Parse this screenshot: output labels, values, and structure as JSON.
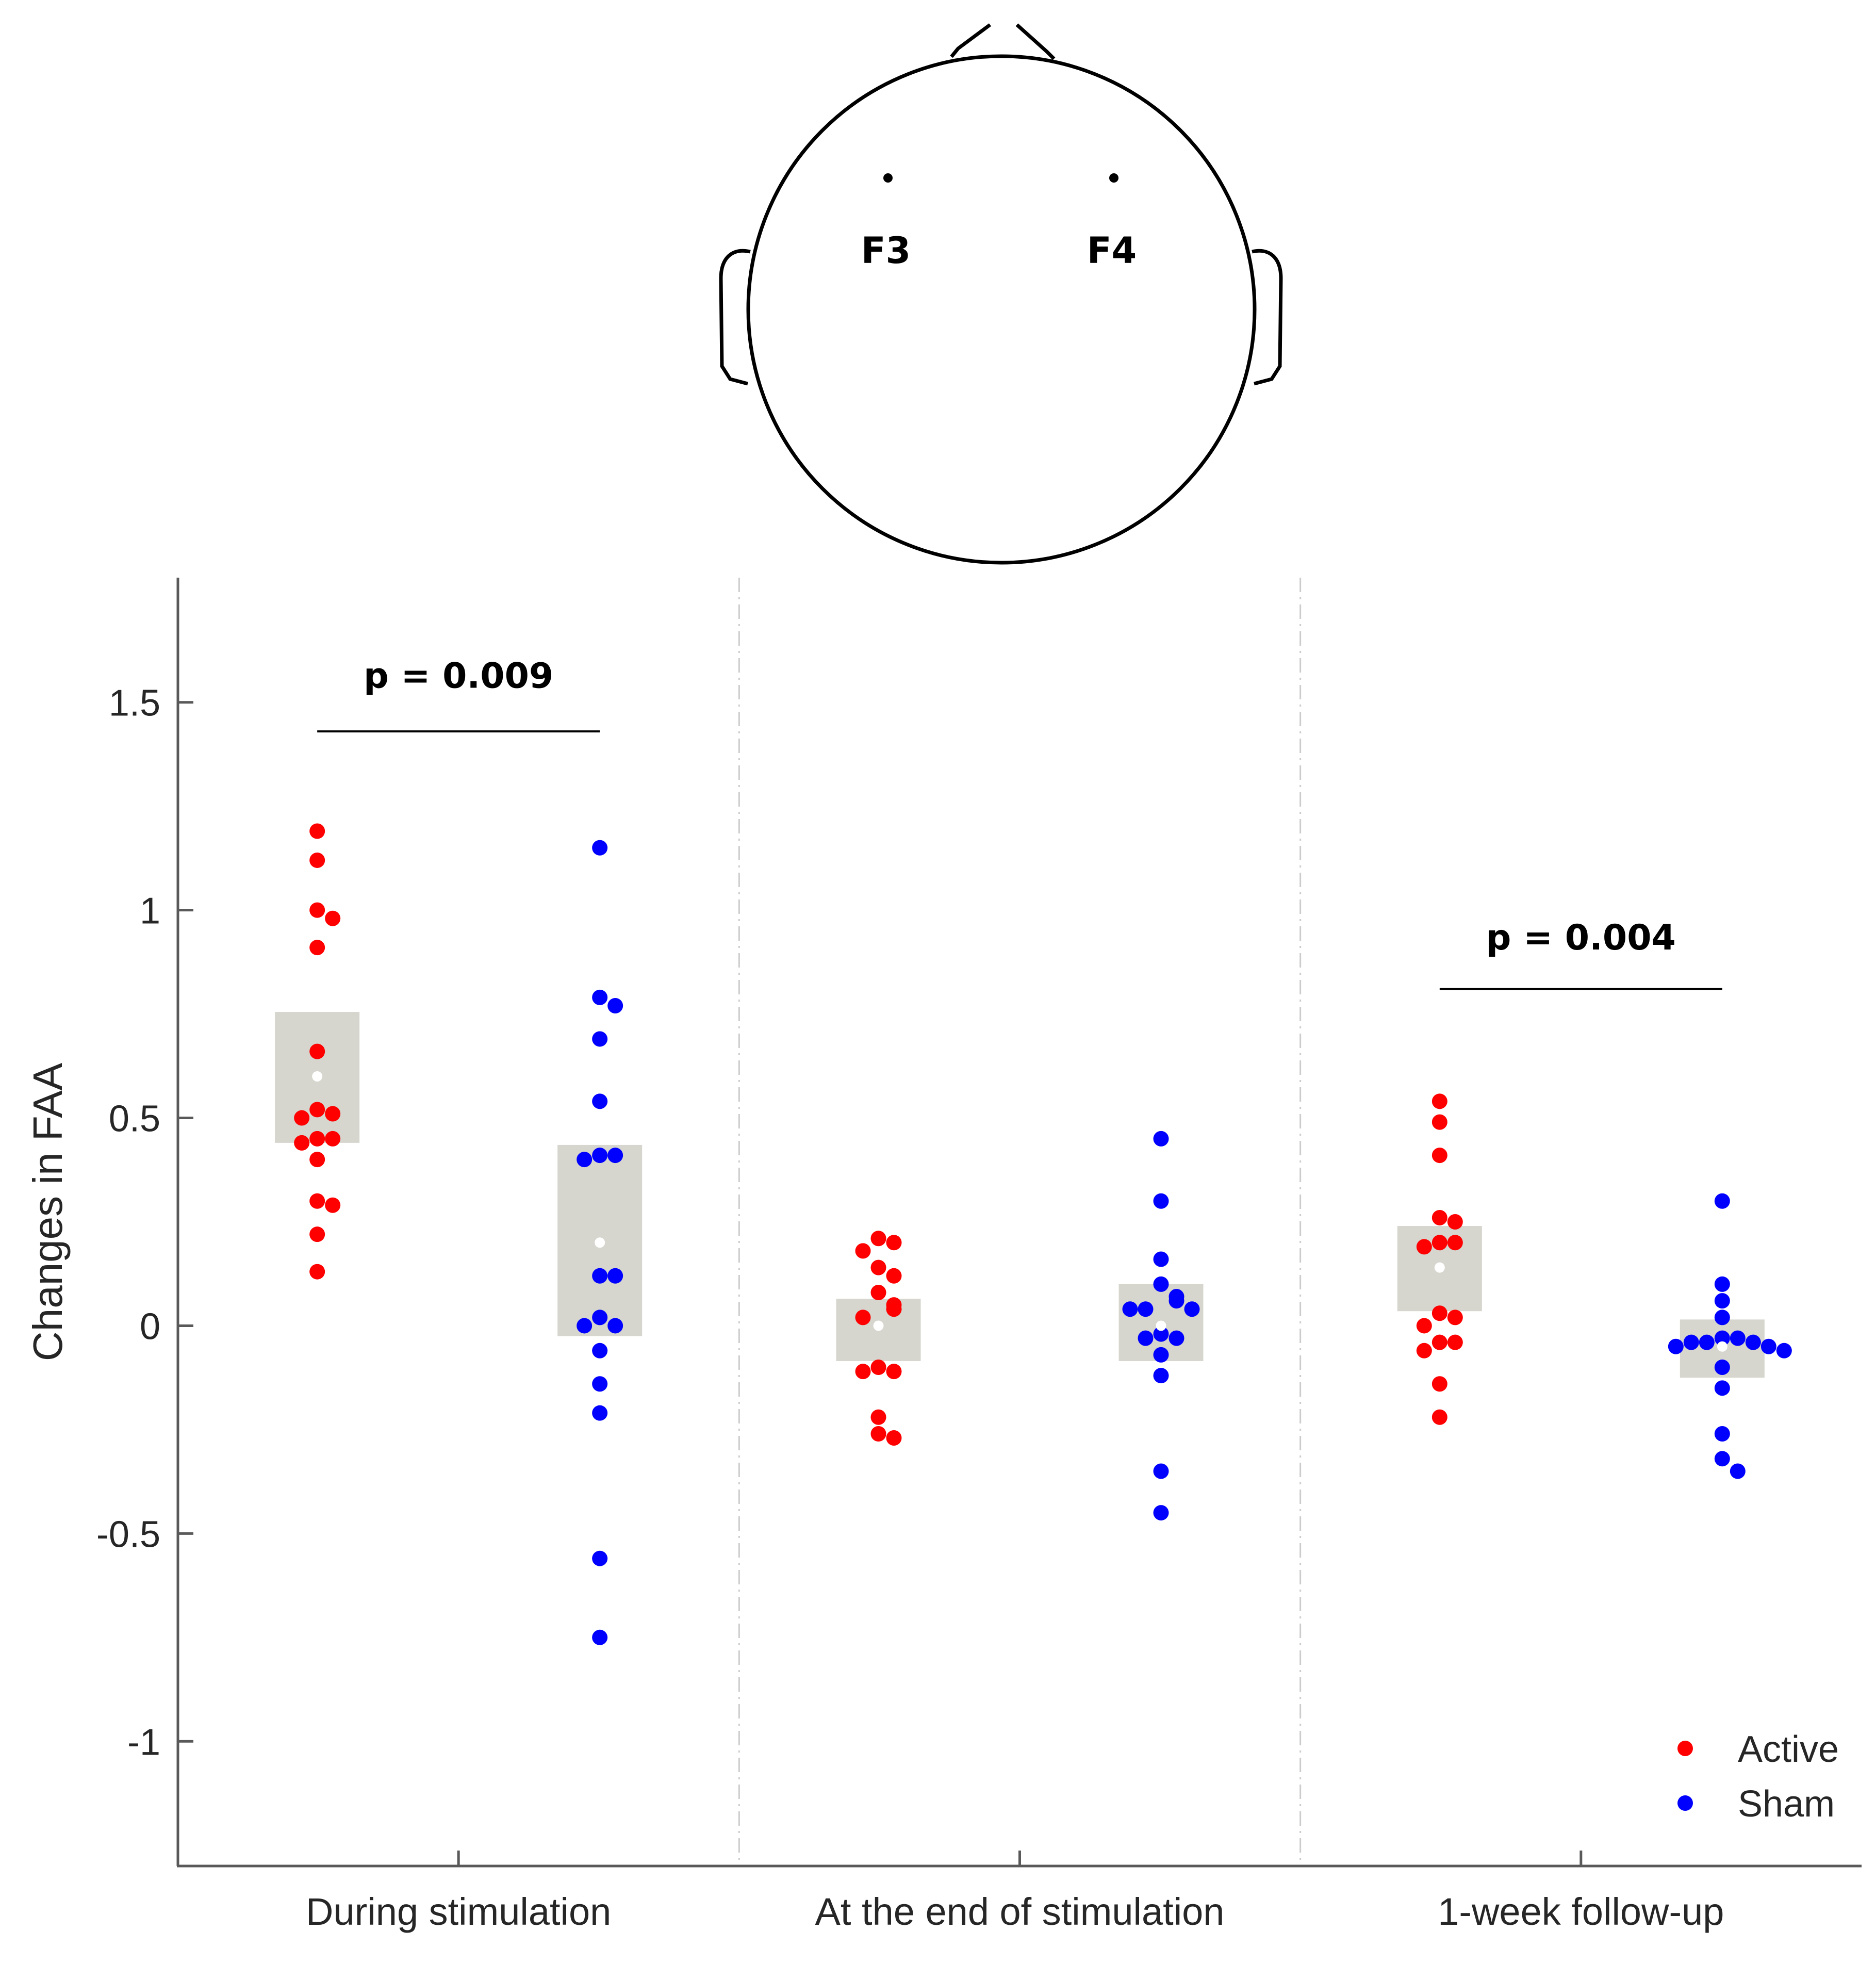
{
  "colors": {
    "active": "#ff0000",
    "sham": "#0000ff",
    "box": "#d6d6ce",
    "axis": "#595959",
    "divider": "#cccccc"
  },
  "head": {
    "electrodes": [
      {
        "label": "F3"
      },
      {
        "label": "F4"
      }
    ]
  },
  "chart_data": {
    "type": "scatter",
    "ylabel": "Changes in FAA",
    "xlabel": "",
    "ylim": [
      -1.3,
      1.8
    ],
    "yticks": [
      -1,
      -0.5,
      0,
      0.5,
      1,
      1.5
    ],
    "categories": [
      "During stimulation",
      "At the end of stimulation",
      "1-week follow-up"
    ],
    "legend": {
      "position": "bottom-right",
      "entries": [
        "Active",
        "Sham"
      ]
    },
    "annotations": [
      {
        "text": "p = 0.009",
        "from_group": 0,
        "y_line": 1.43,
        "y_text": 1.56
      },
      {
        "text": "p = 0.004",
        "from_group": 2,
        "y_line": 0.81,
        "y_text": 0.93
      }
    ],
    "groups": [
      {
        "category": "During stimulation",
        "active": {
          "mean": 0.6,
          "box": [
            0.44,
            0.755
          ],
          "points": [
            1.19,
            1.12,
            1.0,
            0.98,
            0.91,
            0.66,
            0.52,
            0.51,
            0.5,
            0.45,
            0.45,
            0.44,
            0.4,
            0.3,
            0.29,
            0.22,
            0.13
          ]
        },
        "sham": {
          "mean": 0.2,
          "box": [
            -0.025,
            0.435
          ],
          "points": [
            1.15,
            0.79,
            0.77,
            0.69,
            0.54,
            0.41,
            0.41,
            0.4,
            0.12,
            0.12,
            0.02,
            0.0,
            0.0,
            -0.06,
            -0.14,
            -0.21,
            -0.56,
            -0.75
          ]
        }
      },
      {
        "category": "At the end of stimulation",
        "active": {
          "mean": 0.0,
          "box": [
            -0.085,
            0.065
          ],
          "points": [
            0.21,
            0.2,
            0.18,
            0.14,
            0.12,
            0.08,
            0.05,
            0.04,
            0.02,
            -0.1,
            -0.11,
            -0.11,
            -0.22,
            -0.26,
            -0.27
          ]
        },
        "sham": {
          "mean": 0.0,
          "box": [
            -0.085,
            0.1
          ],
          "points": [
            0.45,
            0.3,
            0.16,
            0.1,
            0.07,
            0.06,
            0.04,
            0.04,
            0.04,
            -0.02,
            -0.03,
            -0.03,
            -0.07,
            -0.12,
            -0.35,
            -0.45
          ]
        }
      },
      {
        "category": "1-week follow-up",
        "active": {
          "mean": 0.14,
          "box": [
            0.035,
            0.24
          ],
          "points": [
            0.54,
            0.49,
            0.41,
            0.26,
            0.25,
            0.2,
            0.2,
            0.19,
            0.03,
            0.02,
            0.0,
            -0.04,
            -0.04,
            -0.06,
            -0.14,
            -0.22
          ]
        },
        "sham": {
          "mean": -0.05,
          "box": [
            -0.125,
            0.015
          ],
          "points": [
            0.3,
            0.1,
            0.06,
            0.02,
            -0.03,
            -0.03,
            -0.04,
            -0.04,
            -0.04,
            -0.05,
            -0.05,
            -0.06,
            -0.1,
            -0.15,
            -0.26,
            -0.32,
            -0.35
          ]
        }
      }
    ]
  }
}
